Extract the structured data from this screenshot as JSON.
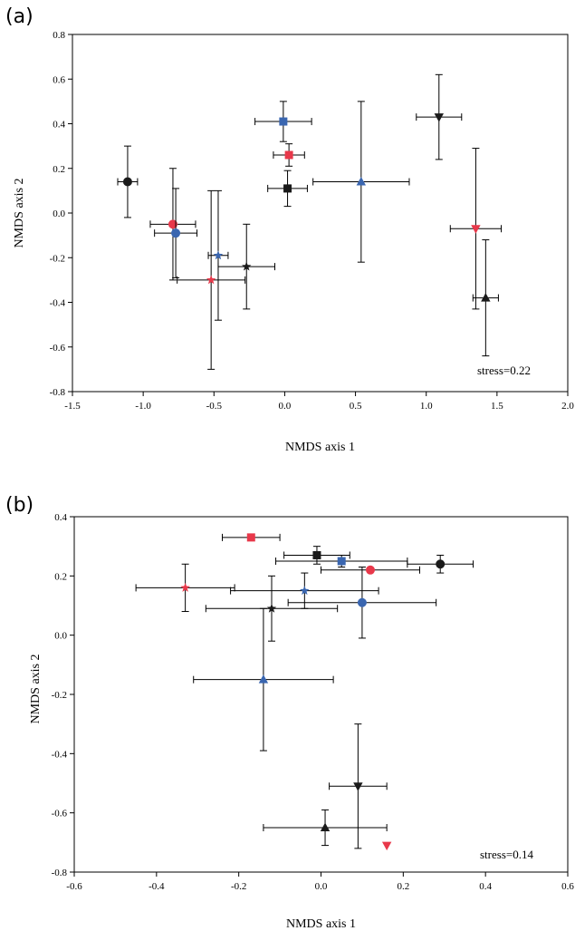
{
  "colors": {
    "black": "#1a1a1a",
    "red": "#e8384a",
    "blue": "#3a66b0"
  },
  "chart_data": [
    {
      "panel": "(a)",
      "type": "scatter",
      "xlabel": "NMDS axis 1",
      "ylabel": "NMDS axis 2",
      "xlim": [
        -1.5,
        2.0
      ],
      "ylim": [
        -0.8,
        0.8
      ],
      "xticks": [
        -1.5,
        -1.0,
        -0.5,
        0.0,
        0.5,
        1.0,
        1.5,
        2.0
      ],
      "xtick_labels": [
        "-1.5",
        "-1.0",
        "-0.5",
        "0.0",
        "0.5",
        "1.0",
        "1.5",
        "2.0"
      ],
      "yticks": [
        -0.8,
        -0.6,
        -0.4,
        -0.2,
        0.0,
        0.2,
        0.4,
        0.6,
        0.8
      ],
      "ytick_labels": [
        "-0.8",
        "-0.6",
        "-0.4",
        "-0.2",
        "0.0",
        "0.2",
        "0.4",
        "0.6",
        "0.8"
      ],
      "annotation": "stress=0.22",
      "points": [
        {
          "marker": "circle",
          "color": "black",
          "x": -1.11,
          "y": 0.14,
          "xerr": 0.07,
          "yerr": 0.16
        },
        {
          "marker": "circle",
          "color": "red",
          "x": -0.79,
          "y": -0.05,
          "xerr": 0.16,
          "yerr": 0.25
        },
        {
          "marker": "circle",
          "color": "blue",
          "x": -0.77,
          "y": -0.09,
          "xerr": 0.15,
          "yerr": 0.2
        },
        {
          "marker": "star",
          "color": "red",
          "x": -0.52,
          "y": -0.3,
          "xerr": 0.24,
          "yerr": 0.4
        },
        {
          "marker": "star",
          "color": "blue",
          "x": -0.47,
          "y": -0.19,
          "xerr": 0.07,
          "yerr": 0.29
        },
        {
          "marker": "star",
          "color": "black",
          "x": -0.27,
          "y": -0.24,
          "xerr": 0.2,
          "yerr": 0.19
        },
        {
          "marker": "square",
          "color": "blue",
          "x": -0.01,
          "y": 0.41,
          "xerr": 0.2,
          "yerr": 0.09
        },
        {
          "marker": "square",
          "color": "red",
          "x": 0.03,
          "y": 0.26,
          "xerr": 0.11,
          "yerr": 0.05
        },
        {
          "marker": "square",
          "color": "black",
          "x": 0.02,
          "y": 0.11,
          "xerr": 0.14,
          "yerr": 0.08
        },
        {
          "marker": "triangle-up",
          "color": "blue",
          "x": 0.54,
          "y": 0.14,
          "xerr": 0.34,
          "yerr": 0.36
        },
        {
          "marker": "triangle-down",
          "color": "black",
          "x": 1.09,
          "y": 0.43,
          "xerr": 0.16,
          "yerr": 0.19
        },
        {
          "marker": "triangle-down",
          "color": "red",
          "x": 1.35,
          "y": -0.07,
          "xerr": 0.18,
          "yerr": 0.36
        },
        {
          "marker": "triangle-up",
          "color": "black",
          "x": 1.42,
          "y": -0.38,
          "xerr": 0.09,
          "yerr": 0.26
        }
      ]
    },
    {
      "panel": "(b)",
      "type": "scatter",
      "xlabel": "NMDS axis 1",
      "ylabel": "NMDS axis 2",
      "xlim": [
        -0.6,
        0.6
      ],
      "ylim": [
        -0.8,
        0.4
      ],
      "xticks": [
        -0.6,
        -0.4,
        -0.2,
        0.0,
        0.2,
        0.4,
        0.6
      ],
      "xtick_labels": [
        "-0.6",
        "-0.4",
        "-0.2",
        "0.0",
        "0.2",
        "0.4",
        "0.6"
      ],
      "yticks": [
        -0.8,
        -0.6,
        -0.4,
        -0.2,
        0.0,
        0.2,
        0.4
      ],
      "ytick_labels": [
        "-0.8",
        "-0.6",
        "-0.4",
        "-0.2",
        "0.0",
        "0.2",
        "0.4"
      ],
      "annotation": "stress=0.14",
      "points": [
        {
          "marker": "square",
          "color": "red",
          "x": -0.17,
          "y": 0.33,
          "xerr": 0.07,
          "yerr": 0.0
        },
        {
          "marker": "square",
          "color": "black",
          "x": -0.01,
          "y": 0.27,
          "xerr": 0.08,
          "yerr": 0.03
        },
        {
          "marker": "square",
          "color": "blue",
          "x": 0.05,
          "y": 0.25,
          "xerr": 0.16,
          "yerr": 0.02
        },
        {
          "marker": "circle",
          "color": "black",
          "x": 0.29,
          "y": 0.24,
          "xerr": 0.08,
          "yerr": 0.03
        },
        {
          "marker": "circle",
          "color": "red",
          "x": 0.12,
          "y": 0.22,
          "xerr": 0.12,
          "yerr": 0.0
        },
        {
          "marker": "star",
          "color": "red",
          "x": -0.33,
          "y": 0.16,
          "xerr": 0.12,
          "yerr": 0.08
        },
        {
          "marker": "star",
          "color": "blue",
          "x": -0.04,
          "y": 0.15,
          "xerr": 0.18,
          "yerr": 0.06
        },
        {
          "marker": "circle",
          "color": "blue",
          "x": 0.1,
          "y": 0.11,
          "xerr": 0.18,
          "yerr": 0.12
        },
        {
          "marker": "star",
          "color": "black",
          "x": -0.12,
          "y": 0.09,
          "xerr": 0.16,
          "yerr": 0.11
        },
        {
          "marker": "triangle-up",
          "color": "blue",
          "x": -0.14,
          "y": -0.15,
          "xerr": 0.17,
          "yerr": 0.24
        },
        {
          "marker": "triangle-down",
          "color": "black",
          "x": 0.09,
          "y": -0.51,
          "xerr": 0.07,
          "yerr": 0.21
        },
        {
          "marker": "triangle-up",
          "color": "black",
          "x": 0.01,
          "y": -0.65,
          "xerr": 0.15,
          "yerr": 0.06
        },
        {
          "marker": "triangle-down",
          "color": "red",
          "x": 0.16,
          "y": -0.71,
          "xerr": 0.0,
          "yerr": 0.0
        }
      ]
    }
  ]
}
